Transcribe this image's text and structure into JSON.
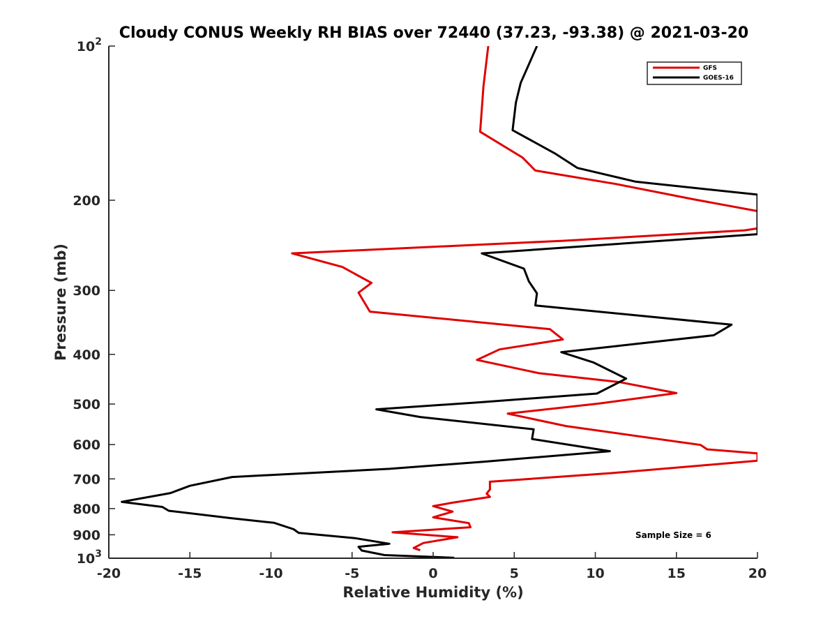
{
  "chart_data": {
    "type": "line",
    "title": "Cloudy CONUS Weekly RH BIAS over 72440 (37.23, -93.38) @ 2021-03-20",
    "xlabel": "Relative Humidity (%)",
    "ylabel": "Pressure (mb)",
    "xlim": [
      -20,
      20
    ],
    "ylim": [
      100,
      1000
    ],
    "y_scale": "log",
    "y_reversed": true,
    "x_ticks": [
      "-20",
      "-15",
      "-10",
      "-5",
      "0",
      "5",
      "10",
      "15",
      "20"
    ],
    "y_ticks": [
      {
        "value": 100,
        "base": "10",
        "exp": "2"
      },
      {
        "value": 200,
        "label": "200"
      },
      {
        "value": 300,
        "label": "300"
      },
      {
        "value": 400,
        "label": "400"
      },
      {
        "value": 500,
        "label": "500"
      },
      {
        "value": 600,
        "label": "600"
      },
      {
        "value": 700,
        "label": "700"
      },
      {
        "value": 800,
        "label": "800"
      },
      {
        "value": 900,
        "label": "900"
      },
      {
        "value": 1000,
        "base": "10",
        "exp": "3"
      }
    ],
    "grid": false,
    "legend_position": "top-right",
    "annotation": "Sample Size = 6",
    "series": [
      {
        "name": "GFS",
        "color": "#e00000",
        "points": [
          [
            3.4,
            100
          ],
          [
            3.1,
            120
          ],
          [
            2.9,
            147
          ],
          [
            5.5,
            165
          ],
          [
            6.3,
            175
          ],
          [
            11.3,
            186
          ],
          [
            16,
            199
          ],
          [
            20,
            210
          ],
          [
            20,
            227
          ],
          [
            19.2,
            229
          ],
          [
            8,
            240
          ],
          [
            -8.7,
            254
          ],
          [
            -5.6,
            270
          ],
          [
            -3.8,
            290
          ],
          [
            -4.6,
            303
          ],
          [
            -3.9,
            330
          ],
          [
            7.2,
            357
          ],
          [
            8,
            374
          ],
          [
            4.1,
            391
          ],
          [
            2.7,
            410
          ],
          [
            6.5,
            435
          ],
          [
            11.5,
            453
          ],
          [
            15,
            476
          ],
          [
            10.2,
            499
          ],
          [
            4.6,
            522
          ],
          [
            8.2,
            552
          ],
          [
            12.5,
            577
          ],
          [
            16.5,
            601
          ],
          [
            16.9,
            613
          ],
          [
            20,
            624
          ],
          [
            20,
            645
          ],
          [
            16.1,
            661
          ],
          [
            11,
            682
          ],
          [
            3.5,
            709
          ],
          [
            3.5,
            734
          ],
          [
            3.3,
            748
          ],
          [
            3.5,
            759
          ],
          [
            1.2,
            779
          ],
          [
            0,
            791
          ],
          [
            1.2,
            811
          ],
          [
            0,
            832
          ],
          [
            2.2,
            854
          ],
          [
            2.3,
            870
          ],
          [
            -2.5,
            890
          ],
          [
            1.5,
            910
          ],
          [
            -0.6,
            934
          ],
          [
            -1.2,
            955
          ],
          [
            -0.8,
            965
          ]
        ]
      },
      {
        "name": "GOES-16",
        "color": "#000000",
        "points": [
          [
            6.4,
            100
          ],
          [
            5.4,
            118
          ],
          [
            5.1,
            129
          ],
          [
            4.9,
            146
          ],
          [
            7.5,
            162
          ],
          [
            8.9,
            173
          ],
          [
            12.5,
            184
          ],
          [
            20,
            195
          ],
          [
            20,
            233
          ],
          [
            3,
            254
          ],
          [
            5.6,
            272
          ],
          [
            5.9,
            288
          ],
          [
            6.4,
            304
          ],
          [
            6.3,
            321
          ],
          [
            18.4,
            350
          ],
          [
            17.3,
            367
          ],
          [
            11.4,
            385
          ],
          [
            7.9,
            396
          ],
          [
            9.9,
            415
          ],
          [
            11.9,
            446
          ],
          [
            10.1,
            477
          ],
          [
            2.9,
            496
          ],
          [
            -3.5,
            512
          ],
          [
            -0.8,
            530
          ],
          [
            6.2,
            560
          ],
          [
            6.1,
            585
          ],
          [
            10.9,
            618
          ],
          [
            3.1,
            648
          ],
          [
            -2.7,
            669
          ],
          [
            -12.4,
            694
          ],
          [
            -15,
            722
          ],
          [
            -16.2,
            746
          ],
          [
            -19.2,
            776
          ],
          [
            -16.7,
            794
          ],
          [
            -16.3,
            808
          ],
          [
            -12.5,
            835
          ],
          [
            -9.8,
            853
          ],
          [
            -8.6,
            878
          ],
          [
            -8.3,
            892
          ],
          [
            -4.8,
            914
          ],
          [
            -2.7,
            937
          ],
          [
            -4.6,
            950
          ],
          [
            -4.4,
            966
          ],
          [
            -3,
            986
          ],
          [
            1.3,
            998
          ]
        ]
      }
    ]
  }
}
